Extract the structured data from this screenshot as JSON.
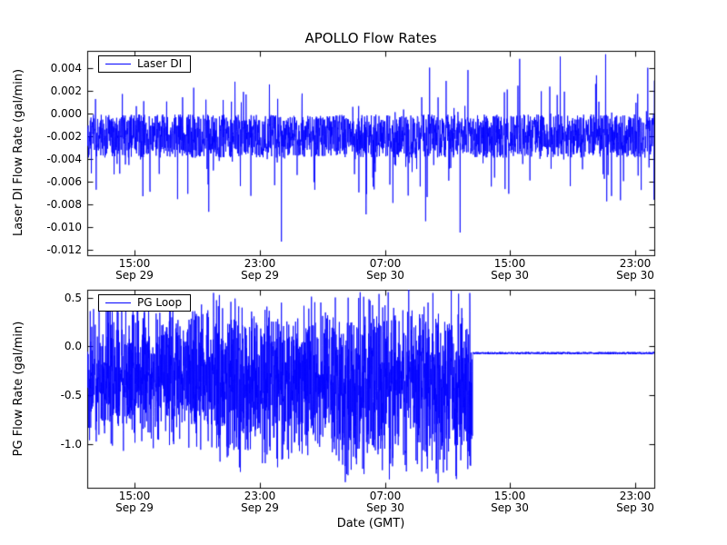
{
  "figure": {
    "title": "APOLLO Flow Rates",
    "xlabel": "Date (GMT)",
    "background": "#ffffff",
    "line_color": "#0000ff"
  },
  "chart_data": [
    {
      "type": "line",
      "title": "APOLLO Flow Rates",
      "ylabel": "Laser DI Flow Rate (gal/min)",
      "legend": "Laser DI",
      "legend_position": "upper left",
      "line_color": "#0000ff",
      "grid": false,
      "x_range_hours": [
        0,
        36.2
      ],
      "ylim": [
        -0.0125,
        0.0055
      ],
      "yticks": [
        0.004,
        0.002,
        0,
        -0.002,
        -0.004,
        -0.006,
        -0.008,
        -0.01,
        -0.012
      ],
      "ytick_labels": [
        "0.004",
        "0.002",
        "0.000",
        "-0.002",
        "-0.004",
        "-0.006",
        "-0.008",
        "-0.010",
        "-0.012"
      ],
      "xtick_hours": [
        3,
        11,
        19,
        27,
        35
      ],
      "xtick_labels": [
        {
          "time": "15:00",
          "date": "Sep 29"
        },
        {
          "time": "23:00",
          "date": "Sep 29"
        },
        {
          "time": "07:00",
          "date": "Sep 30"
        },
        {
          "time": "15:00",
          "date": "Sep 30"
        },
        {
          "time": "23:00",
          "date": "Sep 30"
        }
      ],
      "signal": {
        "description": "dense noise centered near -0.002 gal/min, negative excursions to about -0.008, positive spikes growing from about 0.002 early to 0.005 late, isolated deep dips near -0.011",
        "baseline": -0.002,
        "noise_half_range": 0.0019,
        "neg_spike_prob": 0.05,
        "neg_spike_extra_max": 0.005,
        "pos_spike_prob": 0.045,
        "pos_spike_base": 0.0025,
        "pos_spike_growth": 0.0028,
        "samples": 2600,
        "deep_spikes": [
          {
            "t": 12.4,
            "v": -0.0113
          },
          {
            "t": 17.8,
            "v": -0.0089
          },
          {
            "t": 21.6,
            "v": -0.0095
          },
          {
            "t": 23.8,
            "v": -0.0105
          },
          {
            "t": 27.6,
            "v": 0.0048
          },
          {
            "t": 30.2,
            "v": 0.005
          },
          {
            "t": 33.1,
            "v": 0.0052
          }
        ]
      }
    },
    {
      "type": "line",
      "ylabel": "PG Flow Rate (gal/min)",
      "legend": "PG Loop",
      "legend_position": "upper left",
      "line_color": "#0000ff",
      "grid": false,
      "x_range_hours": [
        0,
        36.2
      ],
      "ylim": [
        -1.45,
        0.58
      ],
      "yticks": [
        0.5,
        0,
        -0.5,
        -1
      ],
      "ytick_labels": [
        "0.5",
        "0.0",
        "-0.5",
        "-1.0"
      ],
      "xtick_hours": [
        3,
        11,
        19,
        27,
        35
      ],
      "xtick_labels": [
        {
          "time": "15:00",
          "date": "Sep 29"
        },
        {
          "time": "23:00",
          "date": "Sep 29"
        },
        {
          "time": "07:00",
          "date": "Sep 30"
        },
        {
          "time": "15:00",
          "date": "Sep 30"
        },
        {
          "time": "23:00",
          "date": "Sep 30"
        }
      ],
      "samples": 3400,
      "segments": [
        {
          "t0": 0,
          "t1": 8,
          "lo": -1.02,
          "hi": 0.46
        },
        {
          "t0": 8,
          "t1": 16,
          "lo": -1.22,
          "hi": 0.5
        },
        {
          "t0": 16,
          "t1": 24.6,
          "lo": -1.36,
          "hi": 0.55
        },
        {
          "t0": 24.6,
          "t1": 36.2,
          "flat": -0.07,
          "noise": 0.012
        }
      ]
    }
  ]
}
